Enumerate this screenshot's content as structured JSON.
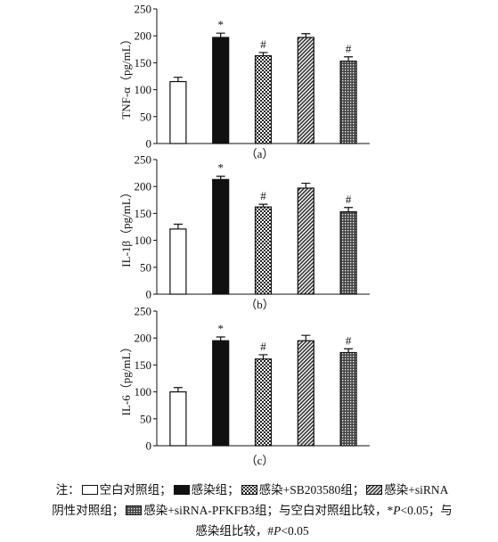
{
  "chart_data": [
    {
      "type": "bar",
      "panel_label": "（a）",
      "ylabel": "TNF-α（pg/mL）",
      "categories": [
        null,
        null,
        null,
        null,
        null
      ],
      "values": [
        115,
        197,
        163,
        197,
        153
      ],
      "errors": [
        8,
        8,
        6,
        7,
        8
      ],
      "markers": [
        null,
        "*",
        "#",
        null,
        "#"
      ],
      "ylim": [
        0,
        250
      ],
      "yticks": [
        0,
        50,
        100,
        150,
        200,
        250
      ]
    },
    {
      "type": "bar",
      "panel_label": "（b）",
      "ylabel": "IL-1β（pg/mL）",
      "categories": [
        null,
        null,
        null,
        null,
        null
      ],
      "values": [
        121,
        213,
        162,
        197,
        153
      ],
      "errors": [
        9,
        6,
        5,
        9,
        8
      ],
      "markers": [
        null,
        "*",
        "#",
        null,
        "#"
      ],
      "ylim": [
        0,
        250
      ],
      "yticks": [
        0,
        50,
        100,
        150,
        200,
        250
      ]
    },
    {
      "type": "bar",
      "panel_label": "（c）",
      "ylabel": "IL-6（pg/mL）",
      "categories": [
        null,
        null,
        null,
        null,
        null
      ],
      "values": [
        100,
        195,
        161,
        195,
        173
      ],
      "errors": [
        8,
        7,
        8,
        10,
        7
      ],
      "markers": [
        null,
        "*",
        "#",
        null,
        "#"
      ],
      "ylim": [
        0,
        250
      ],
      "yticks": [
        0,
        50,
        100,
        150,
        200,
        250
      ]
    }
  ],
  "legend": {
    "prefix": "注：",
    "items": [
      {
        "name": "空白对照组；",
        "pattern": "white"
      },
      {
        "name": "感染组；",
        "pattern": "black"
      },
      {
        "name": "感染+SB203580组；",
        "pattern": "checker"
      },
      {
        "name": "感染+siRNA阴性对照组；",
        "pattern": "hatch"
      },
      {
        "name": "感染+siRNA-PFKFB3组；",
        "pattern": "grid"
      }
    ],
    "footnote": [
      {
        "text": "与空白对照组比较，*",
        "italic": false
      },
      {
        "text": "P",
        "italic": true
      },
      {
        "text": "<0.05；与感染组比较，#",
        "italic": false
      },
      {
        "text": "P",
        "italic": true
      },
      {
        "text": "<0.05",
        "italic": false
      }
    ]
  }
}
